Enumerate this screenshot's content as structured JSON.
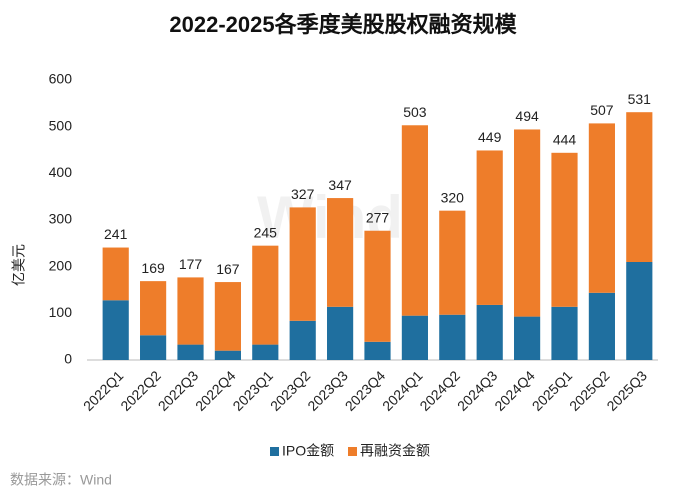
{
  "chart_data": {
    "type": "stacked_bar",
    "title": "2022-2025各季度美股股权融资规模",
    "y_label": "亿美元",
    "source": "数据来源：Wind",
    "watermark": "Wind",
    "categories": [
      "2022Q1",
      "2022Q2",
      "2022Q3",
      "2022Q4",
      "2023Q1",
      "2023Q2",
      "2023Q3",
      "2023Q4",
      "2024Q1",
      "2024Q2",
      "2024Q3",
      "2024Q4",
      "2025Q1",
      "2025Q2",
      "2025Q3"
    ],
    "series": [
      {
        "name": "IPO金额",
        "color": "#1f6f9f",
        "values": [
          128,
          53,
          33,
          20,
          33,
          84,
          114,
          39,
          95,
          97,
          118,
          93,
          114,
          144,
          210
        ]
      },
      {
        "name": "再融资金额",
        "color": "#ee7d2a",
        "values": [
          113,
          116,
          144,
          147,
          212,
          243,
          233,
          238,
          408,
          223,
          331,
          401,
          330,
          363,
          321
        ]
      }
    ],
    "totals": [
      241,
      169,
      177,
      167,
      245,
      327,
      347,
      277,
      503,
      320,
      449,
      494,
      444,
      507,
      531
    ],
    "ylim": [
      0,
      600
    ],
    "yticks": [
      0,
      100,
      200,
      300,
      400,
      500,
      600
    ],
    "grid": false,
    "legend": "bottom"
  }
}
